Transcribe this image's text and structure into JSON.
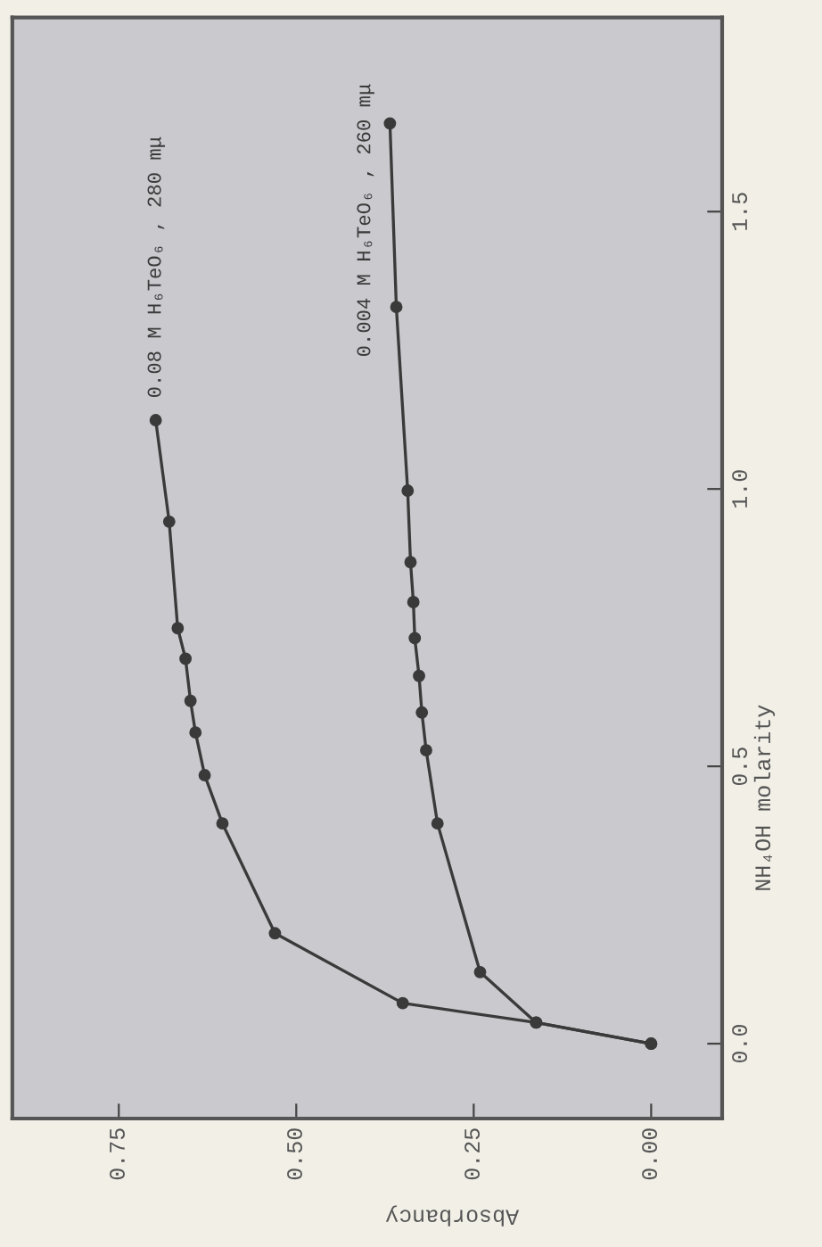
{
  "chart_data": {
    "type": "line",
    "xlabel": "Absorbancy",
    "ylabel": "NH₄OH molarity",
    "xlim": [
      0.9,
      -0.1
    ],
    "ylim": [
      -0.135,
      1.85
    ],
    "xticks": [
      {
        "value": 0.75,
        "label": "0.75"
      },
      {
        "value": 0.5,
        "label": "0.50"
      },
      {
        "value": 0.25,
        "label": "0.25"
      },
      {
        "value": 0,
        "label": "0.00"
      }
    ],
    "yticks": [
      {
        "value": 0,
        "label": "0.0"
      },
      {
        "value": 0.5,
        "label": "0.5"
      },
      {
        "value": 1,
        "label": "1.0"
      },
      {
        "value": 1.5,
        "label": "1.5"
      }
    ],
    "grid": false,
    "legend": false,
    "marker": "circle",
    "line_style": "solid",
    "series": [
      {
        "name": "0.08 M H₆TeO₆ , 280 mμ",
        "color": "#3a3a3a",
        "x": [
          0,
          0.162,
          0.35,
          0.53,
          0.604,
          0.629,
          0.642,
          0.649,
          0.656,
          0.667,
          0.679,
          0.698
        ],
        "values": [
          0,
          0.038,
          0.073,
          0.199,
          0.397,
          0.484,
          0.561,
          0.618,
          0.694,
          0.749,
          0.941,
          1.124
        ]
      },
      {
        "name": "0.004 M H₆TeO₆ , 260 mμ",
        "color": "#3a3a3a",
        "x": [
          0,
          0.162,
          0.241,
          0.301,
          0.317,
          0.323,
          0.327,
          0.333,
          0.335,
          0.339,
          0.343,
          0.359,
          0.368
        ],
        "values": [
          0,
          0.038,
          0.129,
          0.397,
          0.529,
          0.597,
          0.663,
          0.731,
          0.796,
          0.868,
          0.997,
          1.328,
          1.659
        ]
      }
    ]
  }
}
